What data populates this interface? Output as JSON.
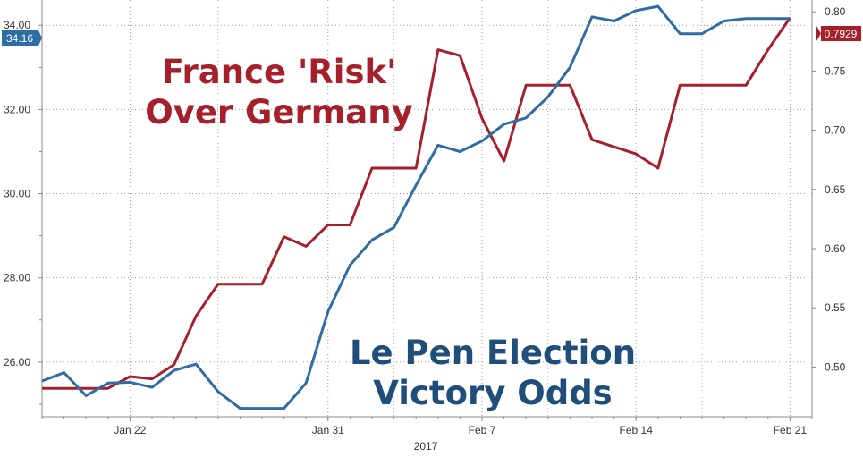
{
  "chart_data": {
    "type": "line",
    "x_tick_labels": [
      "Jan 22",
      "Jan 31",
      "Feb 7",
      "Feb 14",
      "Feb 21"
    ],
    "x_axis_year": "2017",
    "left_axis": {
      "ticks": [
        "26.00",
        "28.00",
        "30.00",
        "32.00",
        "34.00"
      ],
      "ylim": [
        24.7,
        34.6
      ]
    },
    "right_axis": {
      "ticks": [
        "0.50",
        "0.55",
        "0.60",
        "0.65",
        "0.70",
        "0.75",
        "0.80"
      ],
      "ylim": [
        0.458,
        0.81
      ]
    },
    "x_range": [
      "2017-01-18",
      "2017-02-22"
    ],
    "grid": true,
    "annotations": {
      "red_title_line1": "France 'Risk'",
      "red_title_line2": "Over Germany",
      "blue_title_line1": "Le Pen Election",
      "blue_title_line2": "Victory Odds"
    },
    "series": [
      {
        "axis": "right",
        "color": "#a6202c",
        "last_value_label": "0.7929",
        "x": [
          "2017-01-18",
          "2017-01-19",
          "2017-01-20",
          "2017-01-21",
          "2017-01-22",
          "2017-01-23",
          "2017-01-24",
          "2017-01-25",
          "2017-01-26",
          "2017-01-27",
          "2017-01-28",
          "2017-01-29",
          "2017-01-30",
          "2017-01-31",
          "2017-02-01",
          "2017-02-02",
          "2017-02-03",
          "2017-02-04",
          "2017-02-05",
          "2017-02-06",
          "2017-02-07",
          "2017-02-08",
          "2017-02-09",
          "2017-02-10",
          "2017-02-11",
          "2017-02-12",
          "2017-02-13",
          "2017-02-14",
          "2017-02-15",
          "2017-02-16",
          "2017-02-17",
          "2017-02-18",
          "2017-02-19",
          "2017-02-20",
          "2017-02-21"
        ],
        "values": [
          0.482,
          0.482,
          0.482,
          0.482,
          0.492,
          0.49,
          0.502,
          0.543,
          0.57,
          0.57,
          0.57,
          0.61,
          0.602,
          0.62,
          0.62,
          0.668,
          0.668,
          0.668,
          0.768,
          0.763,
          0.71,
          0.674,
          0.738,
          0.738,
          0.738,
          0.692,
          0.686,
          0.68,
          0.668,
          0.738,
          0.738,
          0.738,
          0.738,
          0.768,
          0.795
        ]
      },
      {
        "axis": "left",
        "color": "#2e6ca4",
        "last_value_label": "34.16",
        "x": [
          "2017-01-18",
          "2017-01-19",
          "2017-01-20",
          "2017-01-21",
          "2017-01-22",
          "2017-01-23",
          "2017-01-24",
          "2017-01-25",
          "2017-01-26",
          "2017-01-27",
          "2017-01-28",
          "2017-01-29",
          "2017-01-30",
          "2017-01-31",
          "2017-02-01",
          "2017-02-02",
          "2017-02-03",
          "2017-02-04",
          "2017-02-05",
          "2017-02-06",
          "2017-02-07",
          "2017-02-08",
          "2017-02-09",
          "2017-02-10",
          "2017-02-11",
          "2017-02-12",
          "2017-02-13",
          "2017-02-14",
          "2017-02-15",
          "2017-02-16",
          "2017-02-17",
          "2017-02-18",
          "2017-02-19",
          "2017-02-20",
          "2017-02-21"
        ],
        "values": [
          25.55,
          25.75,
          25.2,
          25.5,
          25.52,
          25.4,
          25.8,
          25.95,
          25.3,
          24.9,
          24.9,
          24.9,
          25.5,
          27.2,
          28.3,
          28.9,
          29.2,
          30.2,
          31.15,
          31.0,
          31.25,
          31.65,
          31.8,
          32.3,
          33.0,
          34.2,
          34.1,
          34.35,
          34.45,
          33.8,
          33.8,
          34.1,
          34.16,
          34.16,
          34.16
        ]
      }
    ]
  }
}
